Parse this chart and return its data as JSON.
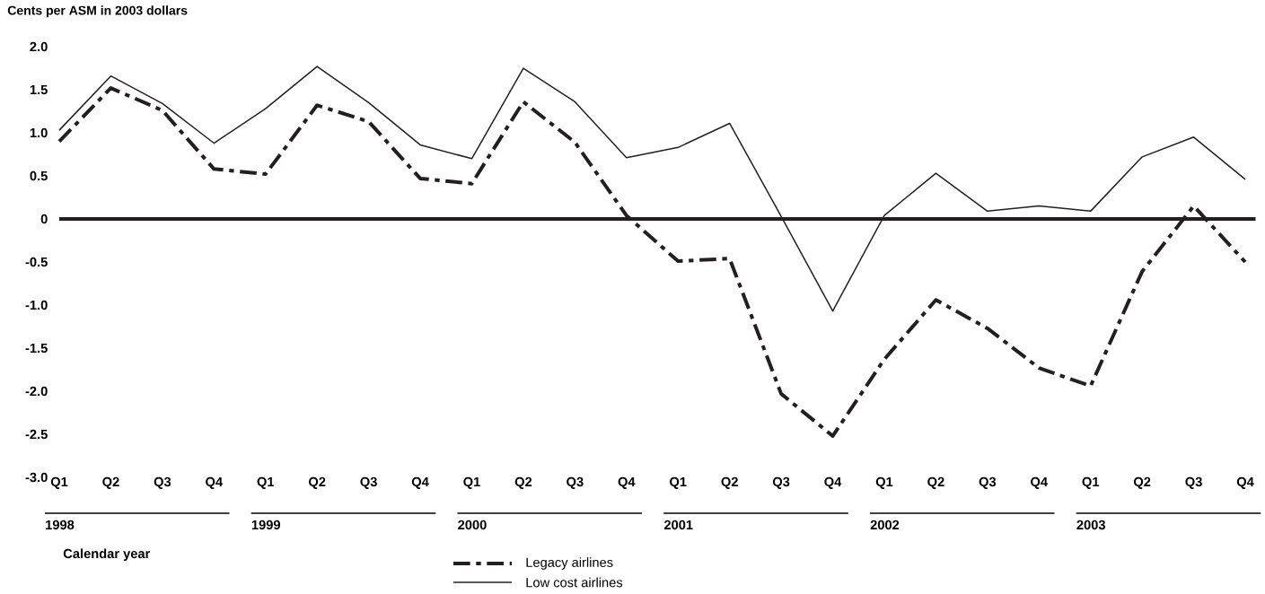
{
  "chart_data": {
    "type": "line",
    "ylabel": "Cents per ASM in 2003 dollars",
    "xlabel": "Calendar year",
    "categories": [
      "Q1",
      "Q2",
      "Q3",
      "Q4",
      "Q1",
      "Q2",
      "Q3",
      "Q4",
      "Q1",
      "Q2",
      "Q3",
      "Q4",
      "Q1",
      "Q2",
      "Q3",
      "Q4",
      "Q1",
      "Q2",
      "Q3",
      "Q4",
      "Q1",
      "Q2",
      "Q3",
      "Q4"
    ],
    "annotations": [
      "1998",
      "1999",
      "2000",
      "2001",
      "2002",
      "2003"
    ],
    "series": [
      {
        "name": "Legacy airlines",
        "color": "#231f20",
        "line_style": "dashed",
        "values": [
          0.9,
          1.52,
          1.26,
          0.58,
          0.52,
          1.32,
          1.13,
          0.47,
          0.41,
          1.36,
          0.89,
          0.04,
          -0.49,
          -0.46,
          -2.03,
          -2.52,
          -1.63,
          -0.94,
          -1.27,
          -1.73,
          -1.94,
          -0.61,
          0.15,
          -0.5
        ]
      },
      {
        "name": "Low cost airlines",
        "color": "#231f20",
        "line_style": "solid",
        "values": [
          1.03,
          1.66,
          1.34,
          0.88,
          1.28,
          1.77,
          1.35,
          0.86,
          0.7,
          1.75,
          1.36,
          0.71,
          0.83,
          1.11,
          0.03,
          -1.07,
          0.04,
          0.53,
          0.09,
          0.15,
          0.09,
          0.72,
          0.95,
          0.46
        ]
      }
    ],
    "ylim": [
      -3,
      2
    ],
    "yticks": [
      {
        "value": 2,
        "label": "2.0"
      },
      1.5,
      {
        "value": 1,
        "label": "1.0"
      },
      0.5,
      0,
      -0.5,
      {
        "value": -1,
        "label": "-1.0"
      },
      -1.5,
      {
        "value": -2,
        "label": "-2.0"
      },
      -2.5,
      {
        "value": -3,
        "label": "-3.0"
      }
    ],
    "ref_lines": [
      {
        "axis": "y",
        "value": 0,
        "color": "#231f20"
      }
    ],
    "legend": "bottom"
  }
}
